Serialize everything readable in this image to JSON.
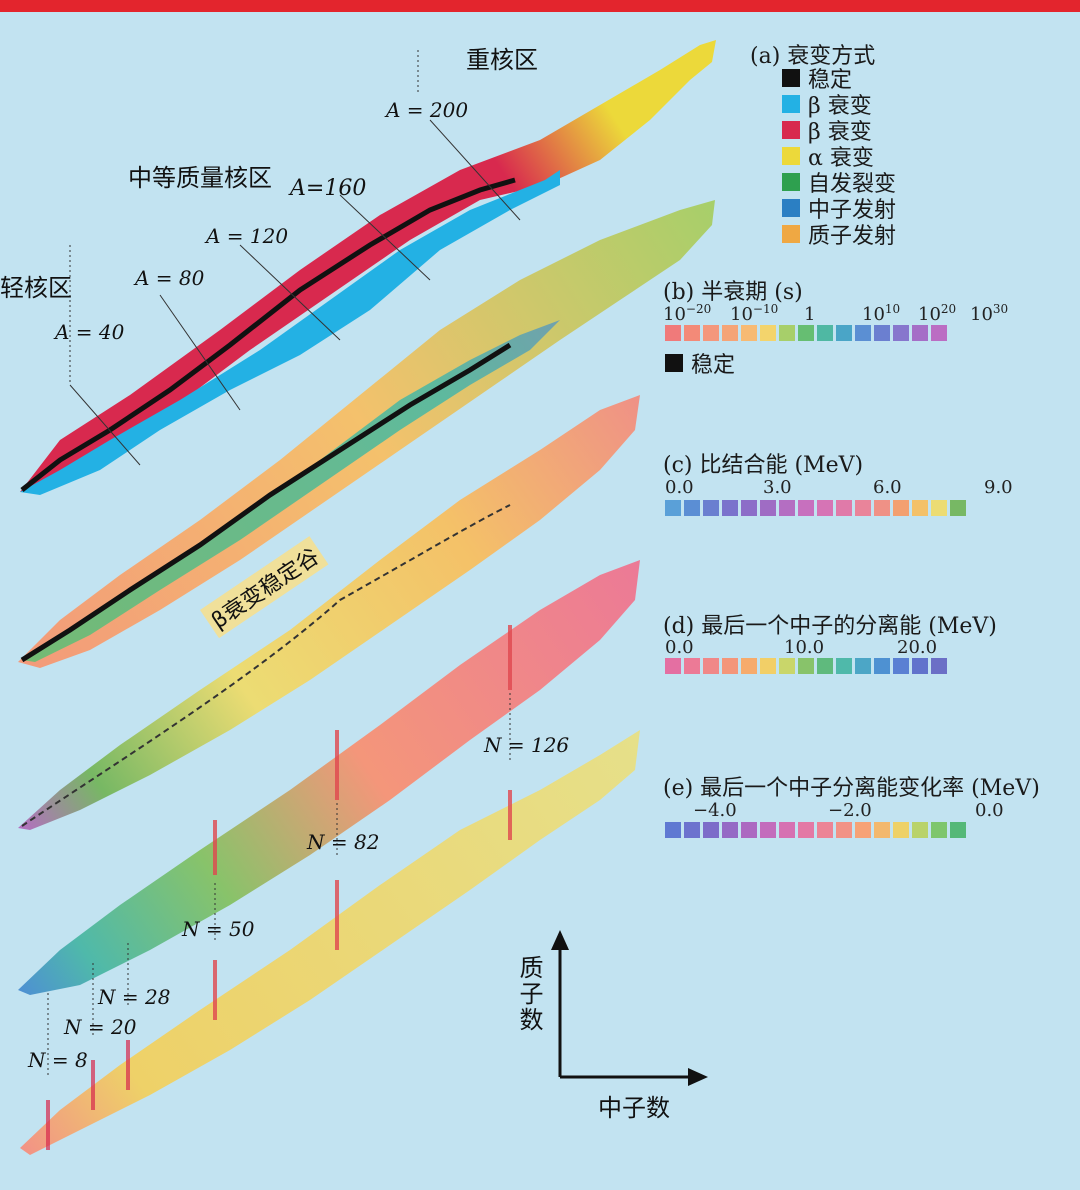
{
  "regions": {
    "light": "轻核区",
    "medium": "中等质量核区",
    "heavy": "重核区"
  },
  "mass_labels": [
    "A = 40",
    "A = 80",
    "A = 120",
    "A=160",
    "A = 200"
  ],
  "neutron_labels": [
    "N = 8",
    "N = 20",
    "N = 28",
    "N = 50",
    "N = 82",
    "N = 126"
  ],
  "valley_label": "β衰变稳定谷",
  "axes": {
    "y": "质子数",
    "x": "中子数"
  },
  "legend_a": {
    "title": "(a) 衰变方式",
    "items": [
      {
        "label": "稳定",
        "color": "#111111"
      },
      {
        "label": "β 衰变",
        "color": "#23b1e4"
      },
      {
        "label": "β 衰变",
        "color": "#d8294e"
      },
      {
        "label": "α 衰变",
        "color": "#ecd93a"
      },
      {
        "label": "自发裂变",
        "color": "#2ea04f"
      },
      {
        "label": "中子发射",
        "color": "#2b7fc3"
      },
      {
        "label": "质子发射",
        "color": "#efa843"
      }
    ]
  },
  "legend_b": {
    "title": "(b) 半衰期 (s)",
    "ticks": [
      "10-20",
      "10-10",
      "1",
      "1010",
      "1020",
      "1030"
    ],
    "stable": "稳定",
    "colors": [
      "#f07a7a",
      "#f38a78",
      "#f4977c",
      "#f5a477",
      "#f7ba73",
      "#f3d46c",
      "#a7cf6a",
      "#66be72",
      "#4fb8a3",
      "#4aa5c7",
      "#5b8fd3",
      "#6b7fd0",
      "#8776cd",
      "#a56ec7",
      "#bb6dc3"
    ]
  },
  "legend_c": {
    "title": "(c) 比结合能 (MeV)",
    "ticks": [
      "0.0",
      "3.0",
      "6.0",
      "9.0"
    ],
    "colors": [
      "#5aa0d8",
      "#5b8ed4",
      "#6a7fd0",
      "#7a72cc",
      "#8c6dc8",
      "#9f6cc4",
      "#b46ec2",
      "#c770be",
      "#d674b5",
      "#e07aa9",
      "#e9849a",
      "#ef9186",
      "#f3a070",
      "#f4c168",
      "#ecdc73",
      "#77b864"
    ]
  },
  "legend_d": {
    "title": "(d) 最后一个中子的分离能 (MeV)",
    "ticks": [
      "0.0",
      "10.0",
      "20.0"
    ],
    "colors": [
      "#e46fa2",
      "#ec7a96",
      "#f08888",
      "#f4967a",
      "#f6ab6c",
      "#f2cf67",
      "#c9d66a",
      "#88c36a",
      "#5fba7d",
      "#4fb9aa",
      "#4ca6c6",
      "#4e91d2",
      "#5a80d3",
      "#6173cc",
      "#6b6fc6"
    ]
  },
  "legend_e": {
    "title": "(e) 最后一个中子分离能变化率 (MeV)",
    "ticks": [
      "−4.0",
      "−2.0",
      "0.0"
    ],
    "colors": [
      "#5f79d2",
      "#6c72ce",
      "#7d6cc9",
      "#9569c5",
      "#ac69c1",
      "#c36cbc",
      "#d671b2",
      "#e379a5",
      "#ec8496",
      "#f29286",
      "#f6a277",
      "#f3b86d",
      "#eed168",
      "#b9d36a",
      "#7ec66d",
      "#55b878"
    ]
  }
}
